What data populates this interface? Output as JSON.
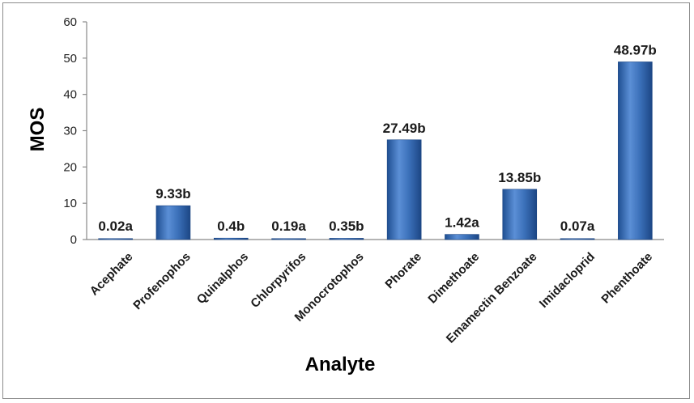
{
  "chart_data": {
    "type": "bar",
    "title": "",
    "xlabel": "Analyte",
    "ylabel": "MOS",
    "ylim": [
      0,
      60
    ],
    "yticks": [
      0,
      10,
      20,
      30,
      40,
      50,
      60
    ],
    "grid": false,
    "legend": "none",
    "bar_color": "#3a6fb8",
    "categories": [
      "Acephate",
      "Profenophos",
      "Quinalphos",
      "Chlorpyrifos",
      "Monocrotophos",
      "Phorate",
      "Dimethoate",
      "Emamectin Benzoate",
      "Imidacloprid",
      "Phenthoate"
    ],
    "values": [
      0.02,
      9.33,
      0.4,
      0.19,
      0.35,
      27.49,
      1.42,
      13.85,
      0.07,
      48.97
    ],
    "data_labels": [
      "0.02a",
      "9.33b",
      "0.4b",
      "0.19a",
      "0.35b",
      "27.49b",
      "1.42a",
      "13.85b",
      "0.07a",
      "48.97b"
    ]
  }
}
